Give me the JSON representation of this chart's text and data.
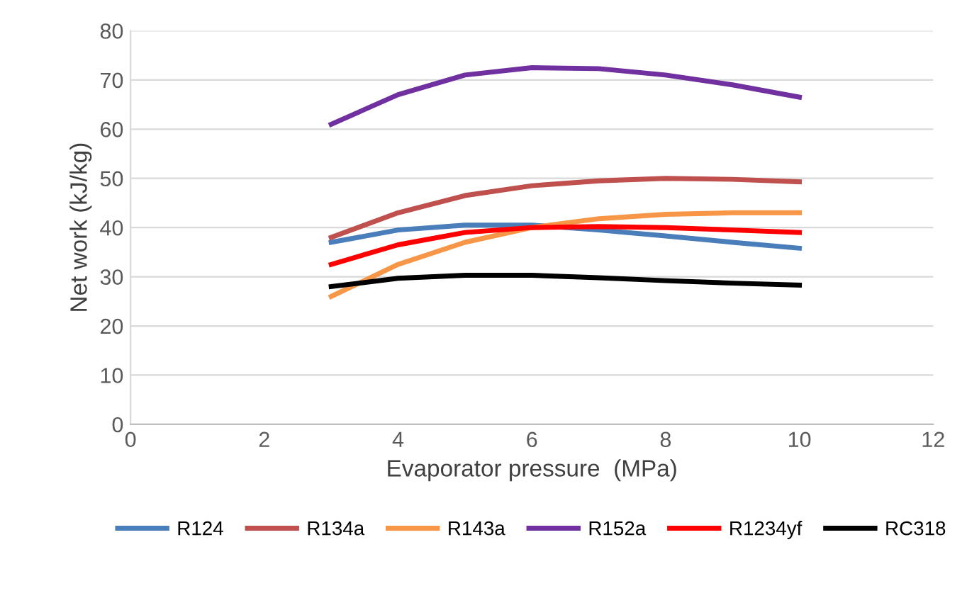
{
  "chart_data": {
    "type": "line",
    "xlabel": "Evaporator pressure  (MPa)",
    "ylabel": "Net work (kJ/kg)",
    "x": [
      3,
      4,
      5,
      6,
      7,
      8,
      9,
      10
    ],
    "series": [
      {
        "name": "R124",
        "color": "#4a7ebb",
        "values": [
          37,
          39.5,
          40.5,
          40.5,
          39.5,
          38.3,
          37,
          35.8
        ]
      },
      {
        "name": "R134a",
        "color": "#c0504d",
        "values": [
          38,
          43,
          46.5,
          48.5,
          49.5,
          50,
          49.8,
          49.3
        ]
      },
      {
        "name": "R143a",
        "color": "#f79646",
        "values": [
          26,
          32.5,
          37,
          40,
          41.8,
          42.7,
          43,
          43
        ]
      },
      {
        "name": "R152a",
        "color": "#7030a0",
        "values": [
          61,
          67,
          71,
          72.5,
          72.3,
          71,
          69,
          66.5
        ]
      },
      {
        "name": "R1234yf",
        "color": "#ff0000",
        "values": [
          32.5,
          36.5,
          39,
          40,
          40.2,
          40,
          39.5,
          39
        ]
      },
      {
        "name": "RC318",
        "color": "#000000",
        "values": [
          28,
          29.7,
          30.3,
          30.3,
          29.8,
          29.2,
          28.7,
          28.3
        ]
      }
    ],
    "xlim": [
      0,
      12
    ],
    "xticks": [
      0,
      2,
      4,
      6,
      8,
      10,
      12
    ],
    "ylim": [
      0,
      80
    ],
    "yticks": [
      0,
      10,
      20,
      30,
      40,
      50,
      60,
      70,
      80
    ],
    "grid": "y",
    "legend": "bottom",
    "marker": "none",
    "line_style": "solid"
  }
}
